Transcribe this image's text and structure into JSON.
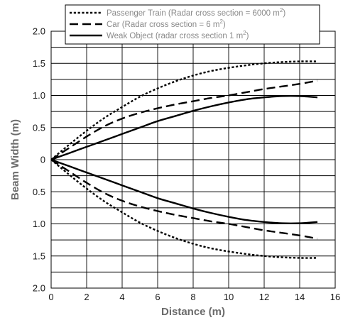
{
  "chart_data": {
    "type": "line",
    "title": "",
    "xlabel": "Distance (m)",
    "ylabel": "Beam Width (m)",
    "xlim": [
      0,
      16
    ],
    "ylim": [
      -2.0,
      2.0
    ],
    "x_ticks": [
      "0",
      "2",
      "4",
      "6",
      "8",
      "10",
      "12",
      "14",
      "16"
    ],
    "y_ticks": [
      {
        "value": 2.0,
        "label": "2.0"
      },
      {
        "value": 1.5,
        "label": "1.5"
      },
      {
        "value": 1.0,
        "label": "1.0"
      },
      {
        "value": 0.5,
        "label": "0.5"
      },
      {
        "value": 0,
        "label": "0"
      },
      {
        "value": -0.5,
        "label": "0.5"
      },
      {
        "value": -1.0,
        "label": "1.0"
      },
      {
        "value": -1.5,
        "label": "1.5"
      },
      {
        "value": -2.0,
        "label": "2.0"
      }
    ],
    "grid": true,
    "legend_position": "top",
    "series": [
      {
        "name": "Passenger Train (Radar cross section = 6000 m2)",
        "legend_main": "Passenger Train (Radar cross section = 6000 m",
        "legend_sup": "2",
        "legend_tail": ")",
        "style": "dotted",
        "x": [
          0,
          1,
          2,
          3,
          4,
          5,
          6,
          7,
          8,
          9,
          10,
          11,
          12,
          13,
          14,
          15
        ],
        "upper": [
          0,
          0.23,
          0.45,
          0.65,
          0.82,
          0.98,
          1.11,
          1.22,
          1.31,
          1.38,
          1.43,
          1.47,
          1.5,
          1.52,
          1.53,
          1.53
        ],
        "lower": [
          0,
          -0.23,
          -0.45,
          -0.65,
          -0.82,
          -0.98,
          -1.11,
          -1.22,
          -1.31,
          -1.38,
          -1.43,
          -1.47,
          -1.5,
          -1.52,
          -1.53,
          -1.53
        ]
      },
      {
        "name": "Car (Radar cross section = 6 m2)",
        "legend_main": "Car (Radar cross section = 6 m",
        "legend_sup": "2",
        "legend_tail": ")",
        "style": "dashed",
        "x": [
          0,
          1,
          2,
          3,
          4,
          5,
          6,
          7,
          8,
          9,
          10,
          11,
          12,
          13,
          14,
          15
        ],
        "upper": [
          0,
          0.18,
          0.36,
          0.52,
          0.64,
          0.73,
          0.8,
          0.86,
          0.91,
          0.96,
          1.0,
          1.05,
          1.1,
          1.14,
          1.18,
          1.23
        ],
        "lower": [
          0,
          -0.18,
          -0.36,
          -0.52,
          -0.64,
          -0.73,
          -0.8,
          -0.86,
          -0.91,
          -0.96,
          -1.0,
          -1.05,
          -1.1,
          -1.14,
          -1.18,
          -1.23
        ]
      },
      {
        "name": "Weak Object (radar cross section 1 m2)",
        "legend_main": "Weak Object (radar cross section 1 m",
        "legend_sup": "2",
        "legend_tail": ")",
        "style": "solid",
        "x": [
          0,
          1,
          2,
          3,
          4,
          5,
          6,
          7,
          8,
          9,
          10,
          11,
          12,
          13,
          14,
          15
        ],
        "upper": [
          0,
          0.1,
          0.2,
          0.3,
          0.4,
          0.5,
          0.6,
          0.68,
          0.76,
          0.83,
          0.89,
          0.94,
          0.97,
          0.99,
          0.99,
          0.97
        ],
        "lower": [
          0,
          -0.1,
          -0.2,
          -0.3,
          -0.4,
          -0.5,
          -0.6,
          -0.68,
          -0.76,
          -0.83,
          -0.89,
          -0.94,
          -0.97,
          -0.99,
          -0.99,
          -0.97
        ]
      }
    ]
  }
}
